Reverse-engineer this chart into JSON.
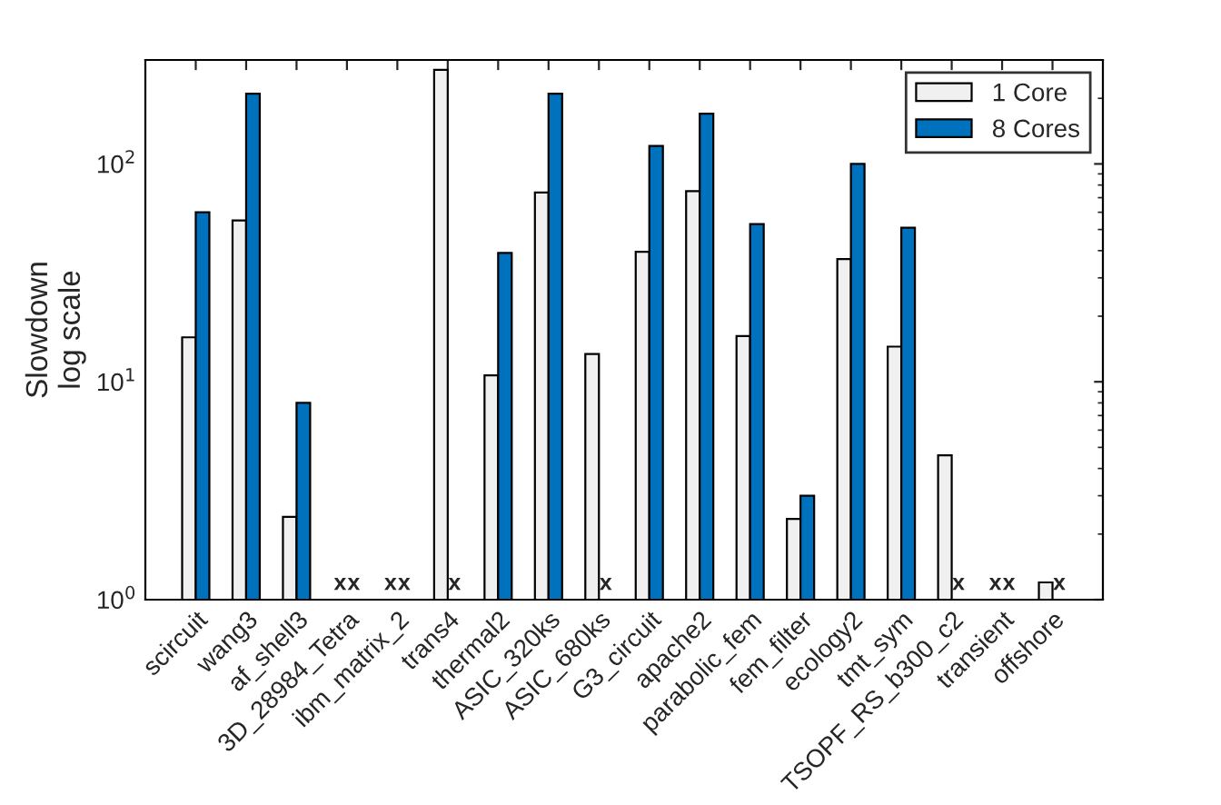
{
  "chart_data": {
    "type": "bar",
    "ylabel": "Slowdown\nlog scale",
    "categories": [
      "scircuit",
      "wang3",
      "af_shell3",
      "3D_28984_Tetra",
      "ibm_matrix_2",
      "trans4",
      "thermal2",
      "ASIC_320ks",
      "ASIC_680ks",
      "G3_circuit",
      "apache2",
      "parabolic_fem",
      "fem_filter",
      "ecology2",
      "tmt_sym",
      "TSOPF_RS_b300_c2",
      "transient",
      "offshore"
    ],
    "series": [
      {
        "name": "1 Core",
        "color": "#f0f0f0",
        "values": [
          16,
          55,
          2.4,
          null,
          null,
          270,
          10.7,
          74,
          13.4,
          39.5,
          75,
          16.2,
          2.35,
          36.6,
          14.5,
          4.6,
          null,
          1.2
        ]
      },
      {
        "name": "8 Cores",
        "color": "#0072bd",
        "values": [
          60,
          210,
          8,
          null,
          null,
          null,
          39,
          210,
          null,
          121,
          170,
          53,
          3.0,
          100,
          51,
          null,
          null,
          null
        ]
      }
    ],
    "log": true,
    "ylim": [
      1,
      300
    ],
    "yticks": [
      {
        "value": 1,
        "label": "10$^{0}$"
      },
      {
        "value": 10,
        "label": "10$^{1}$"
      },
      {
        "value": 100,
        "label": "10$^{2}$"
      }
    ],
    "legend": "top right",
    "grid": false,
    "annotations": [
      "x",
      "x",
      "x",
      "x",
      "x",
      "x",
      "x",
      "x",
      "x",
      "x"
    ]
  }
}
